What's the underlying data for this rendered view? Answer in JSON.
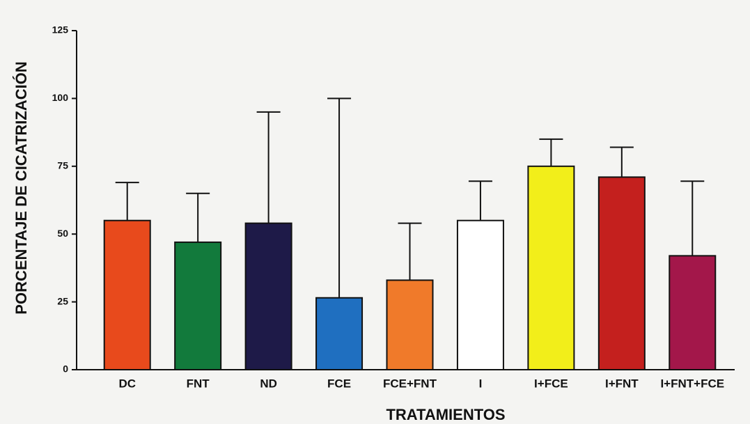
{
  "chart_data": {
    "type": "bar",
    "ylabel": "PORCENTAJE DE CICATRIZACIÓN",
    "xlabel": "TRATAMIENTOS",
    "categories": [
      "DC",
      "FNT",
      "ND",
      "FCE",
      "FCE+FNT",
      "I",
      "I+FCE",
      "I+FNT",
      "I+FNT+FCE"
    ],
    "values": [
      55,
      47,
      54,
      26.5,
      33,
      55,
      75,
      71,
      42
    ],
    "errors": [
      14,
      18,
      41,
      73.5,
      21,
      14.5,
      10,
      11,
      27.5
    ],
    "colors": [
      "#e84a1c",
      "#127a3c",
      "#1e1a48",
      "#1f6fc0",
      "#f07a2a",
      "#ffffff",
      "#f2ee1a",
      "#c4201e",
      "#a3174a"
    ],
    "ylim": [
      0,
      125
    ],
    "yticks": [
      0,
      25,
      50,
      75,
      100,
      125
    ]
  }
}
